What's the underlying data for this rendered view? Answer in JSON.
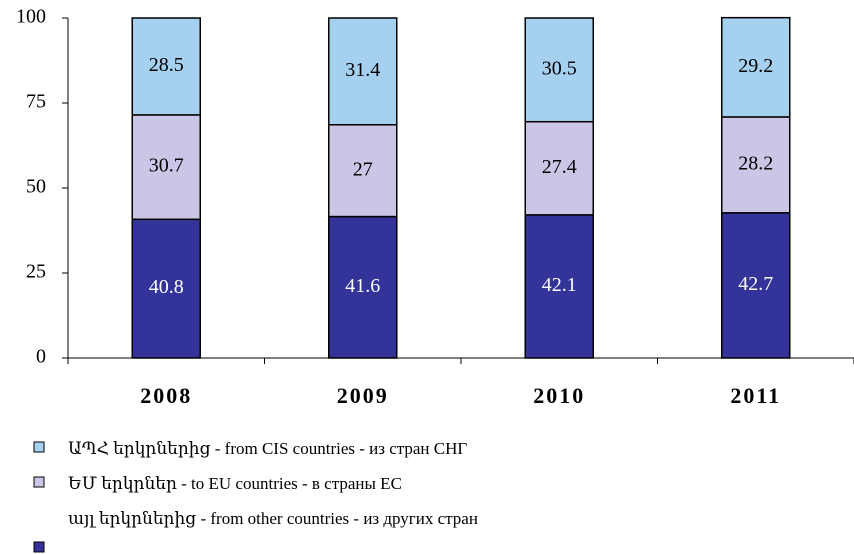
{
  "chart_data": {
    "type": "stacked_bar",
    "categories": [
      "2008",
      "2009",
      "2010",
      "2011"
    ],
    "series": [
      {
        "name": "այլ երկրներից - from other countries - из других стран",
        "color": "#333399",
        "values": [
          40.8,
          41.6,
          42.1,
          42.7
        ]
      },
      {
        "name": "ԵՄ երկրներ - to EU countries - в страны ЕС",
        "color": "#ccc6e6",
        "values": [
          30.7,
          27,
          27.4,
          28.2
        ]
      },
      {
        "name": "ԱՊՀ երկրներից - from CIS countries - из стран СНГ",
        "color": "#a6d0f0",
        "values": [
          28.5,
          31.4,
          30.5,
          29.2
        ]
      }
    ],
    "ylim": [
      0,
      100
    ],
    "yticks": [
      0,
      25,
      50,
      75,
      100
    ]
  }
}
